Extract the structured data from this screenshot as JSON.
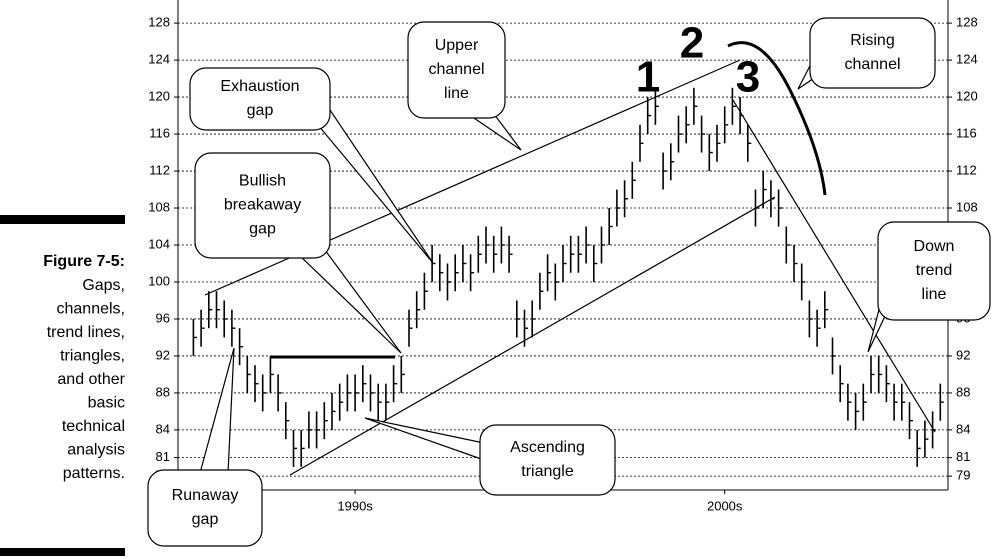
{
  "caption": {
    "label": "Figure 7-5:",
    "lines": [
      "Gaps,",
      "channels,",
      "trend lines,",
      "triangles,",
      "and other",
      "basic",
      "technical",
      "analysis",
      "patterns."
    ]
  },
  "chart_data": {
    "type": "ohlc",
    "color": "#000000",
    "grid": true,
    "xlim": [
      0,
      100
    ],
    "ylim": [
      77.5,
      130.5
    ],
    "yticks": [
      79,
      81,
      84,
      88,
      92,
      96,
      100,
      104,
      108,
      112,
      116,
      120,
      124,
      128
    ],
    "xticks": [
      {
        "value": 23,
        "label": "1990s"
      },
      {
        "value": 71,
        "label": "2000s"
      }
    ],
    "x": [
      2,
      3,
      4,
      5,
      6,
      7,
      8,
      9,
      10,
      11,
      12,
      13,
      14,
      15,
      16,
      17,
      18,
      19,
      20,
      21,
      22,
      23,
      24,
      25,
      26,
      27,
      28,
      29,
      30,
      31,
      32,
      33,
      34,
      35,
      36,
      37,
      38,
      39,
      40,
      41,
      42,
      43,
      44,
      45,
      46,
      47,
      48,
      49,
      50,
      51,
      52,
      53,
      54,
      55,
      56,
      57,
      58,
      59,
      60,
      61,
      62,
      63,
      64,
      65,
      66,
      67,
      68,
      69,
      70,
      71,
      72,
      73,
      74,
      75,
      76,
      77,
      78,
      79,
      80,
      81,
      82,
      83,
      84,
      85,
      86,
      87,
      88,
      89,
      90,
      91,
      92,
      93,
      94,
      95,
      96,
      97,
      98,
      99
    ],
    "high": [
      96,
      97,
      99,
      99,
      98,
      97,
      95,
      92,
      91,
      90,
      92,
      90,
      87,
      84,
      84,
      86,
      86,
      87,
      88,
      89,
      90,
      90,
      91,
      90,
      89,
      89,
      91,
      92,
      97,
      99,
      101,
      104,
      103,
      102,
      103,
      104,
      103,
      105,
      106,
      105,
      106,
      105,
      98,
      97,
      98,
      101,
      103,
      102,
      104,
      105,
      105,
      106,
      104,
      106,
      108,
      110,
      111,
      113,
      117,
      120,
      121,
      114,
      115,
      118,
      119,
      121,
      118,
      116,
      117,
      119,
      121,
      120,
      117,
      110,
      112,
      111,
      110,
      106,
      104,
      102,
      98,
      97,
      99,
      94,
      91,
      89,
      88,
      89,
      92,
      92,
      91,
      89,
      89,
      87,
      84,
      85,
      86,
      89
    ],
    "low": [
      92,
      93,
      95,
      95,
      94,
      93,
      91,
      88,
      87,
      86,
      88,
      86,
      83,
      80,
      80,
      82,
      82,
      83,
      84,
      85,
      86,
      86,
      87,
      86,
      85,
      85,
      87,
      88,
      93,
      95,
      97,
      100,
      99,
      98,
      99,
      100,
      99,
      101,
      102,
      101,
      102,
      101,
      94,
      93,
      94,
      97,
      99,
      98,
      100,
      101,
      101,
      102,
      100,
      102,
      104,
      106,
      107,
      109,
      113,
      116,
      117,
      110,
      111,
      114,
      115,
      117,
      114,
      112,
      113,
      115,
      117,
      116,
      113,
      106,
      108,
      107,
      106,
      102,
      100,
      98,
      94,
      93,
      95,
      90,
      87,
      85,
      84,
      85,
      88,
      88,
      87,
      85,
      85,
      83,
      80,
      81,
      82,
      85
    ],
    "close": [
      94,
      95,
      97,
      97,
      96,
      95,
      93,
      90,
      89,
      88,
      90,
      88,
      85,
      82,
      82,
      84,
      84,
      85,
      86,
      87,
      88,
      88,
      89,
      88,
      87,
      87,
      89,
      90,
      95,
      97,
      99,
      102,
      101,
      100,
      101,
      102,
      101,
      103,
      104,
      103,
      104,
      103,
      96,
      95,
      96,
      99,
      101,
      100,
      102,
      103,
      103,
      104,
      102,
      104,
      106,
      108,
      109,
      111,
      115,
      118,
      119,
      112,
      113,
      116,
      117,
      119,
      116,
      114,
      115,
      117,
      119,
      118,
      115,
      108,
      110,
      109,
      108,
      104,
      102,
      100,
      96,
      95,
      97,
      92,
      89,
      87,
      86,
      87,
      90,
      90,
      89,
      87,
      87,
      85,
      82,
      83,
      84,
      87
    ],
    "annotations": [
      {
        "lines": [
          "Exhaustion",
          "gap"
        ]
      },
      {
        "lines": [
          "Upper",
          "channel",
          "line"
        ]
      },
      {
        "lines": [
          "Bullish",
          "breakaway",
          "gap"
        ]
      },
      {
        "lines": [
          "Rising",
          "channel"
        ]
      },
      {
        "lines": [
          "Down",
          "trend",
          "line"
        ]
      },
      {
        "lines": [
          "Ascending",
          "triangle"
        ]
      },
      {
        "lines": [
          "Runaway",
          "gap"
        ]
      }
    ],
    "markers": [
      "1",
      "2",
      "3"
    ]
  }
}
